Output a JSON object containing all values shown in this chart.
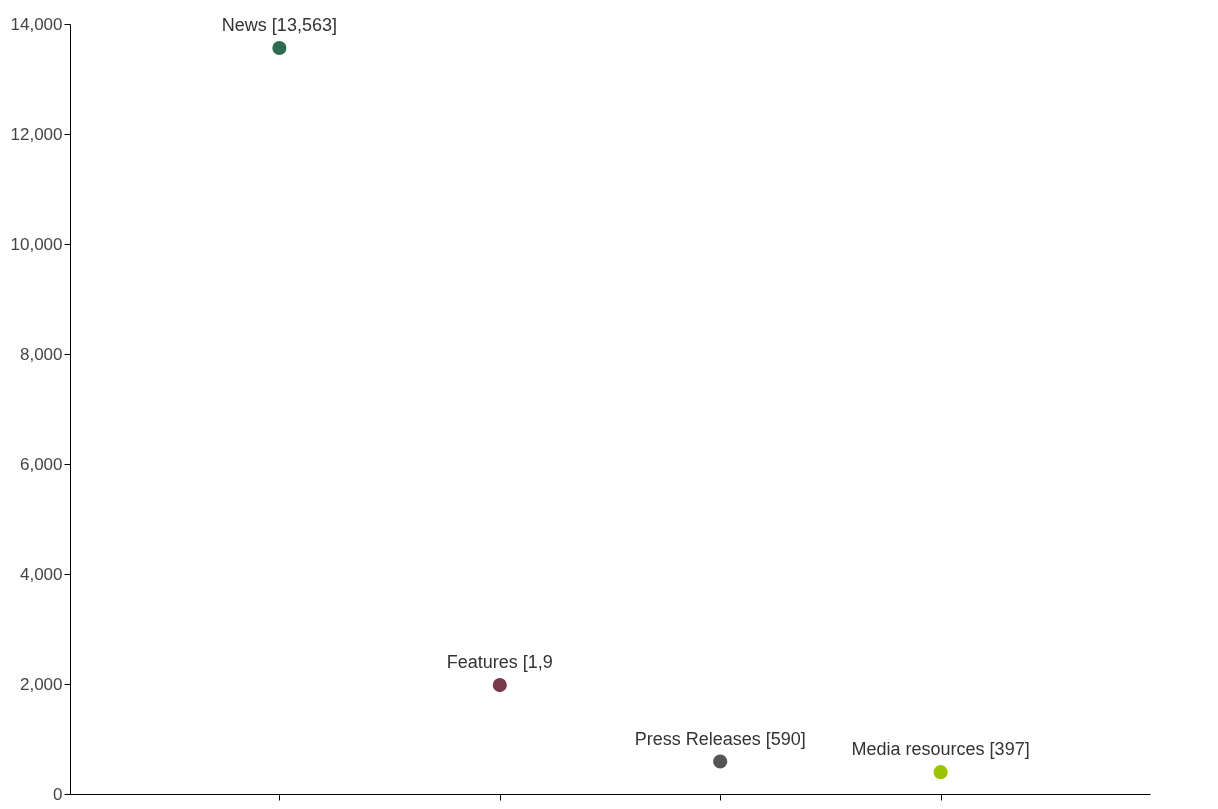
{
  "chart_data": {
    "type": "scatter",
    "categories": [
      null,
      null,
      null,
      null
    ],
    "values": [
      13563,
      1980,
      590,
      397
    ],
    "colors": [
      "#2e6b50",
      "#7a3a4e",
      "#555555",
      "#99c400"
    ],
    "value_labels": [
      "News [13,563]",
      null,
      "Press Releases [590]",
      "Media resources [397]"
    ],
    "annotations": [
      {
        "text": "Features [1,9",
        "y": 1980
      }
    ],
    "ylim": [
      0,
      14000
    ],
    "yticks": [
      0,
      {
        "value": 2000,
        "label": "2,000"
      },
      {
        "value": 4000,
        "label": "4,000"
      },
      {
        "value": 6000,
        "label": "6,000"
      },
      {
        "value": 8000,
        "label": "8,000"
      },
      {
        "value": 10000,
        "label": "10,000"
      },
      {
        "value": 12000,
        "label": "12,000"
      },
      {
        "value": 14000,
        "label": "14,000"
      }
    ],
    "grid": false,
    "legend": false,
    "tick_labels": "y",
    "marker": "circle"
  }
}
